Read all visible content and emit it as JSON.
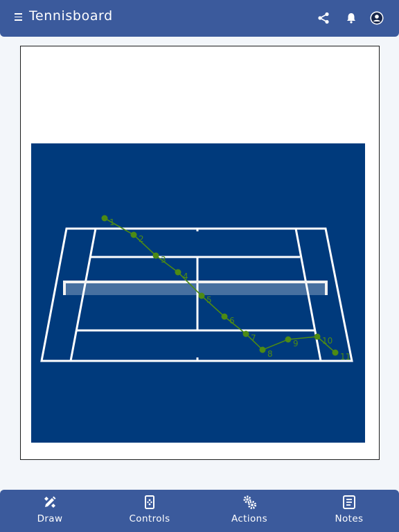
{
  "header": {
    "title": "Tennisboard",
    "icons": [
      "menu-icon",
      "share-icon",
      "bell-icon",
      "account-icon"
    ]
  },
  "court": {
    "court_color": "#003a7c",
    "line_color": "#ffffff",
    "path_color": "#4d8a14",
    "shot_points": [
      {
        "label": "1"
      },
      {
        "label": "2"
      },
      {
        "label": "3"
      },
      {
        "label": "4"
      },
      {
        "label": "5"
      },
      {
        "label": "6"
      },
      {
        "label": "7"
      },
      {
        "label": "8"
      },
      {
        "label": "9"
      },
      {
        "label": "10"
      },
      {
        "label": "11"
      }
    ]
  },
  "bottom_nav": {
    "items": [
      {
        "label": "Draw",
        "icon": "pencil-ruler-icon"
      },
      {
        "label": "Controls",
        "icon": "remote-control-icon"
      },
      {
        "label": "Actions",
        "icon": "gears-icon"
      },
      {
        "label": "Notes",
        "icon": "notes-icon"
      }
    ]
  },
  "colors": {
    "bar": "#3b5a9c",
    "background": "#f3f6fa"
  }
}
